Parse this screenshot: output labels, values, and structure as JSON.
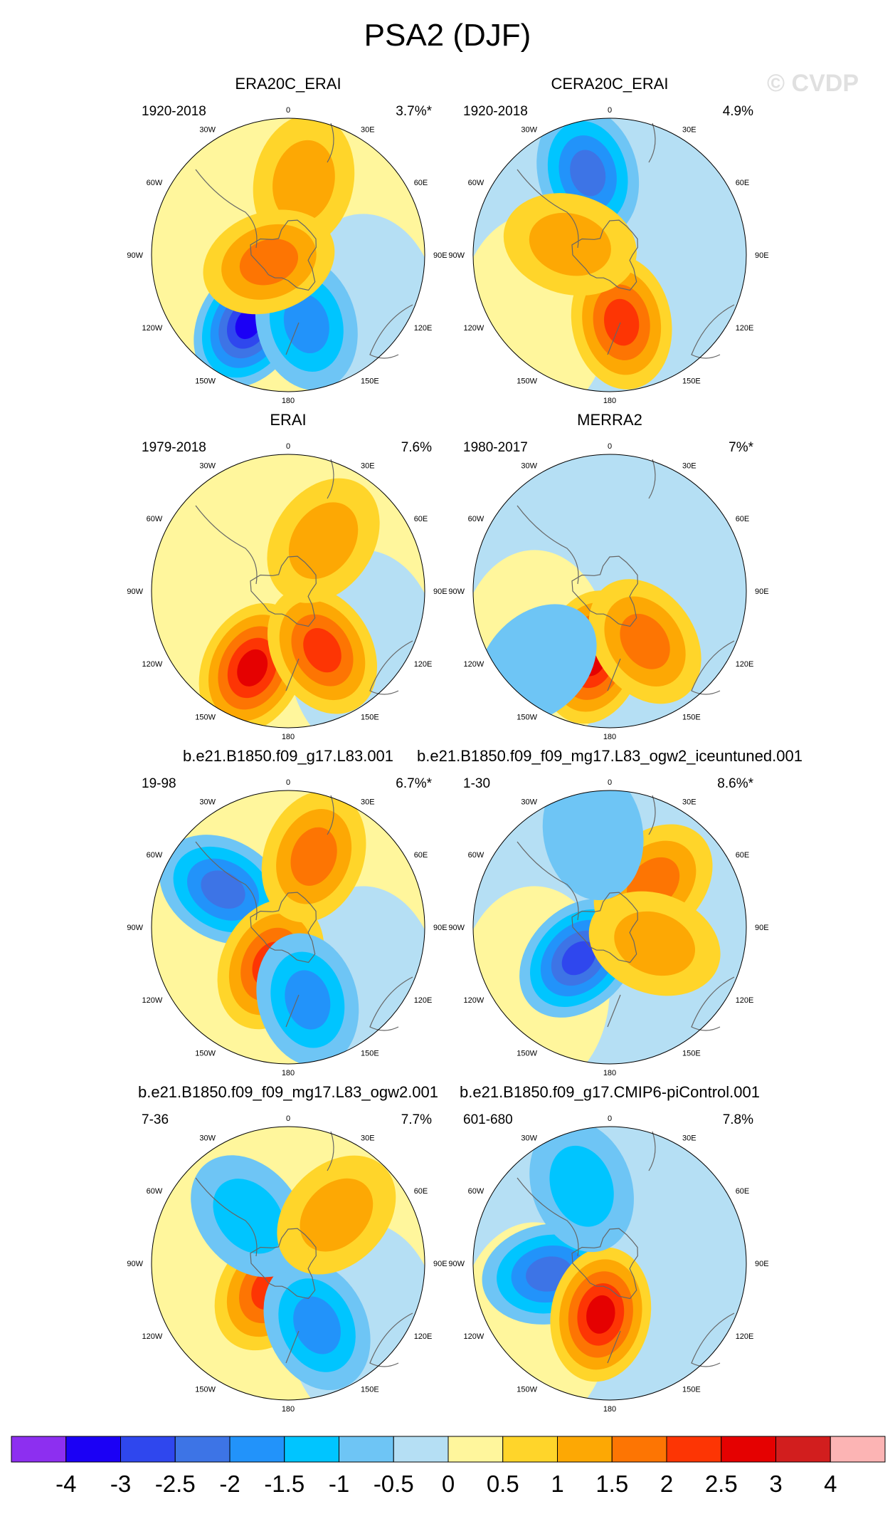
{
  "figure": {
    "title": "PSA2 (DJF)",
    "watermark": "© CVDP"
  },
  "lon_labels": [
    "0",
    "30E",
    "60E",
    "90E",
    "120E",
    "150E",
    "180",
    "150W",
    "120W",
    "90W",
    "60W",
    "30W"
  ],
  "panels": [
    {
      "title": "ERA20C_ERAI",
      "period": "1920-2018",
      "pct": "3.7%*",
      "blobs": [
        {
          "lon": 210,
          "r": 0.58,
          "level": -3
        },
        {
          "lon": 165,
          "r": 0.52,
          "level": -1.5
        },
        {
          "lon": 12,
          "r": 0.55,
          "level": 1
        },
        {
          "lon": 250,
          "r": 0.15,
          "level": 1.5
        }
      ]
    },
    {
      "title": "CERA20C_ERAI",
      "period": "1920-2018",
      "pct": "4.9%",
      "blobs": [
        {
          "lon": 345,
          "r": 0.62,
          "level": -2
        },
        {
          "lon": 170,
          "r": 0.5,
          "level": 2
        },
        {
          "lon": 285,
          "r": 0.3,
          "level": 1
        }
      ]
    },
    {
      "title": "ERAI",
      "period": "1979-2018",
      "pct": "7.6%",
      "blobs": [
        {
          "lon": 205,
          "r": 0.62,
          "level": 2.5
        },
        {
          "lon": 150,
          "r": 0.5,
          "level": 2
        },
        {
          "lon": 35,
          "r": 0.45,
          "level": 1
        }
      ]
    },
    {
      "title": "MERRA2",
      "period": "1980-2017",
      "pct": "7%*",
      "blobs": [
        {
          "lon": 195,
          "r": 0.5,
          "level": 2.5
        },
        {
          "lon": 145,
          "r": 0.45,
          "level": 1.5
        },
        {
          "lon": 225,
          "r": 0.75,
          "level": -0.5
        }
      ]
    },
    {
      "title": "b.e21.B1850.f09_g17.L83.001",
      "period": "19-98",
      "pct": "6.7%*",
      "blobs": [
        {
          "lon": 300,
          "r": 0.55,
          "level": -2
        },
        {
          "lon": 205,
          "r": 0.3,
          "level": 2
        },
        {
          "lon": 165,
          "r": 0.55,
          "level": -1.5
        },
        {
          "lon": 20,
          "r": 0.55,
          "level": 1.5
        }
      ]
    },
    {
      "title": "b.e21.B1850.f09_f09_mg17.L83_ogw2_iceuntuned.001",
      "period": "1-30",
      "pct": "8.6%*",
      "blobs": [
        {
          "lon": 225,
          "r": 0.32,
          "level": -2.5
        },
        {
          "lon": 45,
          "r": 0.45,
          "level": 1.5
        },
        {
          "lon": 110,
          "r": 0.35,
          "level": 1
        },
        {
          "lon": 350,
          "r": 0.7,
          "level": -0.5
        }
      ]
    },
    {
      "title": "b.e21.B1850.f09_f09_mg17.L83_ogw2.001",
      "period": "7-36",
      "pct": "7.7%",
      "blobs": [
        {
          "lon": 215,
          "r": 0.22,
          "level": 2
        },
        {
          "lon": 155,
          "r": 0.5,
          "level": -1.5
        },
        {
          "lon": 320,
          "r": 0.45,
          "level": -1
        },
        {
          "lon": 45,
          "r": 0.5,
          "level": 1
        }
      ]
    },
    {
      "title": "b.e21.B1850.f09_g17.CMIP6-piControl.001",
      "period": "601-680",
      "pct": "7.8%",
      "blobs": [
        {
          "lon": 260,
          "r": 0.45,
          "level": -2
        },
        {
          "lon": 190,
          "r": 0.38,
          "level": 2.5
        },
        {
          "lon": 340,
          "r": 0.6,
          "level": -1
        }
      ]
    }
  ],
  "colorbar": {
    "colors": [
      "#8d2ff0",
      "#1b00f5",
      "#2f47ee",
      "#3d74e6",
      "#2293fa",
      "#00c5ff",
      "#6ec5f5",
      "#b5dff4",
      "#fff69c",
      "#ffd52a",
      "#fda804",
      "#fd7503",
      "#fd3504",
      "#e50101",
      "#d21e1e",
      "#fcb4b4"
    ],
    "labels": [
      "-4",
      "-3",
      "-2.5",
      "-2",
      "-1.5",
      "-1",
      "-0.5",
      "0",
      "0.5",
      "1",
      "1.5",
      "2",
      "2.5",
      "3",
      "4"
    ]
  }
}
